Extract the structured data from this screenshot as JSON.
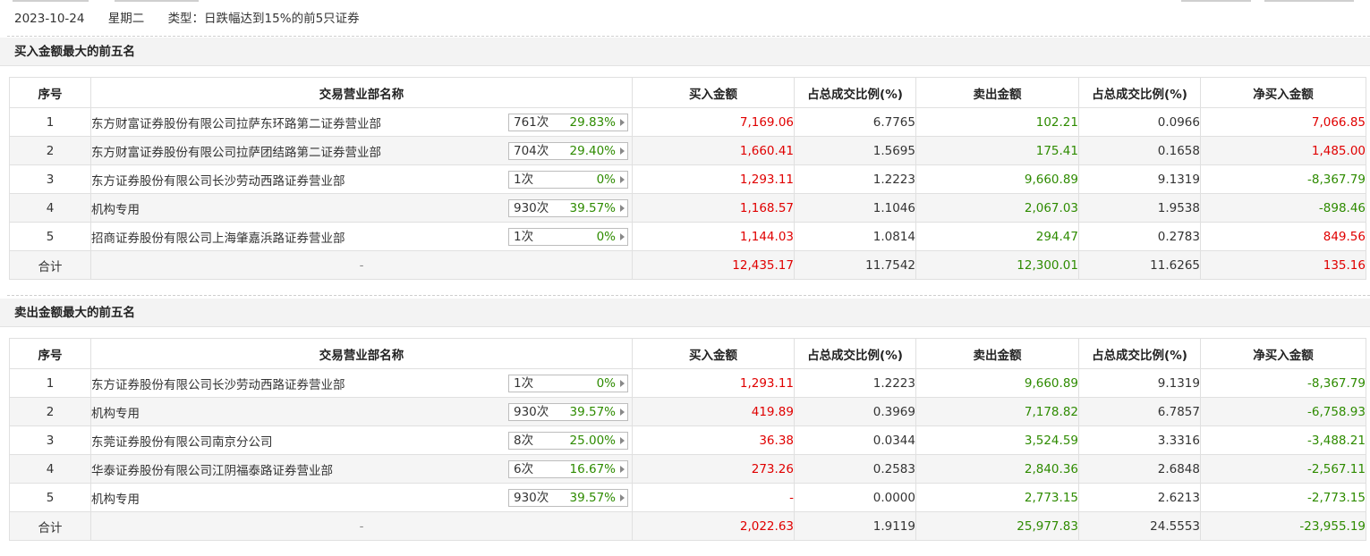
{
  "header": {
    "date": "2023-10-24",
    "weekday": "星期二",
    "type_text": "类型：日跌幅达到15%的前5只证券"
  },
  "colors": {
    "positive": "#e00000",
    "negative": "#2e8b00"
  },
  "buy_section": {
    "title": "买入金额最大的前五名",
    "headers": [
      "序号",
      "交易营业部名称",
      "买入金额",
      "占总成交比例(%)",
      "卖出金额",
      "占总成交比例(%)",
      "净买入金额"
    ],
    "rows": [
      {
        "idx": "1",
        "name": "东方财富证券股份有限公司拉萨东环路第二证券营业部",
        "count": "761次",
        "pct": "29.83%",
        "buy": "7,169.06",
        "buy_ratio": "6.7765",
        "sell": "102.21",
        "sell_ratio": "0.0966",
        "net": "7,066.85"
      },
      {
        "idx": "2",
        "name": "东方财富证券股份有限公司拉萨团结路第二证券营业部",
        "count": "704次",
        "pct": "29.40%",
        "buy": "1,660.41",
        "buy_ratio": "1.5695",
        "sell": "175.41",
        "sell_ratio": "0.1658",
        "net": "1,485.00"
      },
      {
        "idx": "3",
        "name": "东方证券股份有限公司长沙劳动西路证券营业部",
        "count": "1次",
        "pct": "0%",
        "buy": "1,293.11",
        "buy_ratio": "1.2223",
        "sell": "9,660.89",
        "sell_ratio": "9.1319",
        "net": "-8,367.79"
      },
      {
        "idx": "4",
        "name": "机构专用",
        "count": "930次",
        "pct": "39.57%",
        "buy": "1,168.57",
        "buy_ratio": "1.1046",
        "sell": "2,067.03",
        "sell_ratio": "1.9538",
        "net": "-898.46"
      },
      {
        "idx": "5",
        "name": "招商证券股份有限公司上海肇嘉浜路证券营业部",
        "count": "1次",
        "pct": "0%",
        "buy": "1,144.03",
        "buy_ratio": "1.0814",
        "sell": "294.47",
        "sell_ratio": "0.2783",
        "net": "849.56"
      }
    ],
    "total": {
      "label": "合计",
      "name": "-",
      "buy": "12,435.17",
      "buy_ratio": "11.7542",
      "sell": "12,300.01",
      "sell_ratio": "11.6265",
      "net": "135.16"
    }
  },
  "sell_section": {
    "title": "卖出金额最大的前五名",
    "headers": [
      "序号",
      "交易营业部名称",
      "买入金额",
      "占总成交比例(%)",
      "卖出金额",
      "占总成交比例(%)",
      "净买入金额"
    ],
    "rows": [
      {
        "idx": "1",
        "name": "东方证券股份有限公司长沙劳动西路证券营业部",
        "count": "1次",
        "pct": "0%",
        "buy": "1,293.11",
        "buy_ratio": "1.2223",
        "sell": "9,660.89",
        "sell_ratio": "9.1319",
        "net": "-8,367.79"
      },
      {
        "idx": "2",
        "name": "机构专用",
        "count": "930次",
        "pct": "39.57%",
        "buy": "419.89",
        "buy_ratio": "0.3969",
        "sell": "7,178.82",
        "sell_ratio": "6.7857",
        "net": "-6,758.93"
      },
      {
        "idx": "3",
        "name": "东莞证券股份有限公司南京分公司",
        "count": "8次",
        "pct": "25.00%",
        "buy": "36.38",
        "buy_ratio": "0.0344",
        "sell": "3,524.59",
        "sell_ratio": "3.3316",
        "net": "-3,488.21"
      },
      {
        "idx": "4",
        "name": "华泰证券股份有限公司江阴福泰路证券营业部",
        "count": "6次",
        "pct": "16.67%",
        "buy": "273.26",
        "buy_ratio": "0.2583",
        "sell": "2,840.36",
        "sell_ratio": "2.6848",
        "net": "-2,567.11"
      },
      {
        "idx": "5",
        "name": "机构专用",
        "count": "930次",
        "pct": "39.57%",
        "buy": "-",
        "buy_ratio": "0.0000",
        "sell": "2,773.15",
        "sell_ratio": "2.6213",
        "net": "-2,773.15"
      }
    ],
    "total": {
      "label": "合计",
      "name": "-",
      "buy": "2,022.63",
      "buy_ratio": "1.9119",
      "sell": "25,977.83",
      "sell_ratio": "24.5553",
      "net": "-23,955.19"
    }
  }
}
